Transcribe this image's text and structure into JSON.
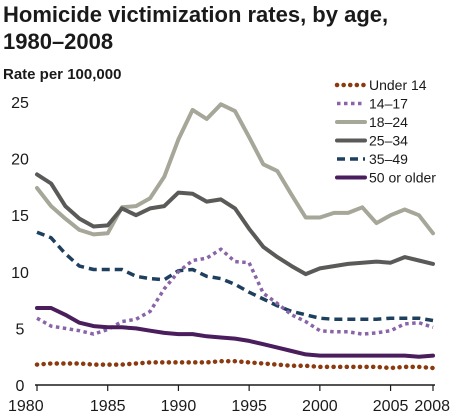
{
  "chart_data": {
    "type": "line",
    "title_line1": "Homicide victimization rates, by age,",
    "title_line2": "1980–2008",
    "ylabel": "Rate per 100,000",
    "xlabel": "",
    "ylim": [
      0,
      25
    ],
    "yticks": [
      "0",
      "5",
      "10",
      "15",
      "20",
      "25"
    ],
    "ytick_values": [
      0,
      5,
      10,
      15,
      20,
      25
    ],
    "xticks": [
      "1980",
      "1985",
      "1990",
      "1995",
      "2000",
      "2005",
      "2008"
    ],
    "xtick_values": [
      1980,
      1985,
      1990,
      1995,
      2000,
      2005,
      2008
    ],
    "xlim": [
      1980,
      2008
    ],
    "grid": false,
    "legend_position": "top-right",
    "x": [
      1980,
      1981,
      1982,
      1983,
      1984,
      1985,
      1986,
      1987,
      1988,
      1989,
      1990,
      1991,
      1992,
      1993,
      1994,
      1995,
      1996,
      1997,
      1998,
      1999,
      2000,
      2001,
      2002,
      2003,
      2004,
      2005,
      2006,
      2007,
      2008
    ],
    "series": [
      {
        "name": "Under 14",
        "color": "#8b3a0f",
        "style": "dotted-round",
        "values": [
          1.8,
          1.9,
          1.9,
          1.9,
          1.8,
          1.8,
          1.8,
          1.9,
          2.0,
          2.0,
          2.0,
          2.0,
          2.0,
          2.1,
          2.1,
          2.0,
          1.9,
          1.8,
          1.7,
          1.7,
          1.6,
          1.6,
          1.6,
          1.6,
          1.6,
          1.5,
          1.6,
          1.6,
          1.5
        ]
      },
      {
        "name": "14–17",
        "color": "#8a64a8",
        "style": "dotted-square",
        "values": [
          5.9,
          5.2,
          5.0,
          4.8,
          4.5,
          4.9,
          5.6,
          5.8,
          6.5,
          8.5,
          10.0,
          11.0,
          11.2,
          12.0,
          10.9,
          10.8,
          8.1,
          7.2,
          6.2,
          5.6,
          4.8,
          4.7,
          4.7,
          4.5,
          4.6,
          4.8,
          5.4,
          5.5,
          5.1
        ]
      },
      {
        "name": "18–24",
        "color": "#a6a699",
        "style": "solid",
        "values": [
          17.4,
          15.8,
          14.7,
          13.7,
          13.3,
          13.4,
          15.7,
          15.8,
          16.5,
          18.4,
          21.7,
          24.3,
          23.5,
          24.8,
          24.2,
          21.9,
          19.5,
          18.9,
          16.8,
          14.8,
          14.8,
          15.2,
          15.2,
          15.7,
          14.3,
          15.0,
          15.5,
          15.0,
          13.4
        ]
      },
      {
        "name": "25–34",
        "color": "#5a5a58",
        "style": "solid",
        "values": [
          18.6,
          17.8,
          15.8,
          14.7,
          14.0,
          14.1,
          15.6,
          15.0,
          15.6,
          15.8,
          17.0,
          16.9,
          16.2,
          16.4,
          15.6,
          13.8,
          12.2,
          11.3,
          10.5,
          9.8,
          10.3,
          10.5,
          10.7,
          10.8,
          10.9,
          10.8,
          11.3,
          11.0,
          10.7
        ]
      },
      {
        "name": "35–49",
        "color": "#1e3f5e",
        "style": "dashed",
        "values": [
          13.5,
          13.0,
          11.6,
          10.5,
          10.2,
          10.2,
          10.2,
          9.6,
          9.4,
          9.3,
          10.1,
          10.2,
          9.6,
          9.4,
          8.9,
          8.2,
          7.6,
          7.0,
          6.5,
          6.2,
          5.9,
          5.8,
          5.8,
          5.8,
          5.8,
          5.9,
          5.9,
          5.9,
          5.7
        ]
      },
      {
        "name": "50 or older",
        "color": "#4a1d5c",
        "style": "solid",
        "values": [
          6.8,
          6.8,
          6.2,
          5.5,
          5.2,
          5.1,
          5.1,
          5.0,
          4.8,
          4.6,
          4.5,
          4.5,
          4.3,
          4.2,
          4.1,
          3.9,
          3.6,
          3.3,
          3.0,
          2.7,
          2.6,
          2.6,
          2.6,
          2.6,
          2.6,
          2.6,
          2.6,
          2.5,
          2.6
        ]
      }
    ]
  }
}
